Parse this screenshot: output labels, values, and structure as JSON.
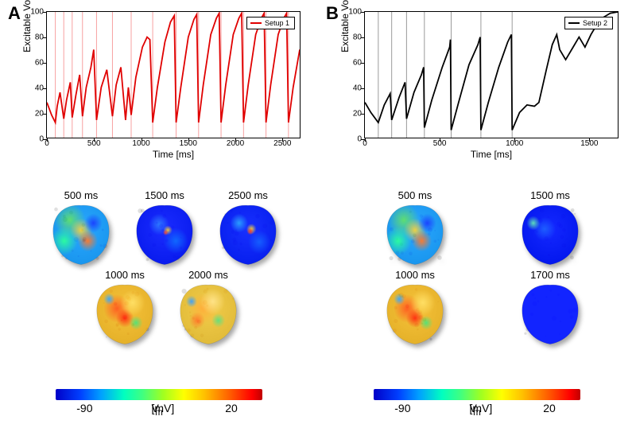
{
  "colors": {
    "setup1_line": "#e00000",
    "setup2_line": "#000000",
    "vline": "#f7a0a0",
    "vline2": "#9a9a9a",
    "axis": "#000000",
    "bg": "#ffffff",
    "shadow": "rgba(0,0,0,0.35)"
  },
  "fontsize": {
    "panel_label": 22,
    "axis_label": 12,
    "tick": 10,
    "thumb_label": 13,
    "legend": 9,
    "cbar_tick": 14
  },
  "panelA": {
    "label": "A",
    "chart": {
      "type": "line",
      "xlim": [
        0,
        2700
      ],
      "ylim": [
        0,
        100
      ],
      "xticks": [
        0,
        500,
        1000,
        1500,
        2000,
        2500
      ],
      "yticks": [
        0,
        20,
        40,
        60,
        80,
        100
      ],
      "xlabel": "Time [ms]",
      "ylabel": "Excitable Volume [%]",
      "legend_label": "Setup 1",
      "line_color": "#e00000",
      "line_width": 1.8,
      "vlines": [
        90,
        180,
        270,
        380,
        530,
        700,
        900,
        1130,
        1380,
        1620,
        1860,
        2100,
        2340,
        2580
      ],
      "vline_color": "#f7a0a0",
      "data": [
        [
          0,
          28
        ],
        [
          50,
          18
        ],
        [
          90,
          12
        ],
        [
          110,
          25
        ],
        [
          140,
          36
        ],
        [
          180,
          15
        ],
        [
          210,
          30
        ],
        [
          250,
          44
        ],
        [
          270,
          16
        ],
        [
          310,
          34
        ],
        [
          350,
          50
        ],
        [
          380,
          17
        ],
        [
          420,
          40
        ],
        [
          470,
          56
        ],
        [
          500,
          70
        ],
        [
          530,
          14
        ],
        [
          580,
          40
        ],
        [
          640,
          54
        ],
        [
          700,
          17
        ],
        [
          740,
          42
        ],
        [
          790,
          56
        ],
        [
          840,
          14
        ],
        [
          870,
          40
        ],
        [
          900,
          18
        ],
        [
          950,
          48
        ],
        [
          1020,
          72
        ],
        [
          1070,
          80
        ],
        [
          1100,
          78
        ],
        [
          1130,
          12
        ],
        [
          1180,
          40
        ],
        [
          1260,
          76
        ],
        [
          1320,
          92
        ],
        [
          1360,
          97
        ],
        [
          1380,
          12
        ],
        [
          1430,
          40
        ],
        [
          1510,
          80
        ],
        [
          1570,
          94
        ],
        [
          1600,
          98
        ],
        [
          1620,
          12
        ],
        [
          1670,
          42
        ],
        [
          1750,
          82
        ],
        [
          1810,
          95
        ],
        [
          1840,
          99
        ],
        [
          1860,
          12
        ],
        [
          1910,
          42
        ],
        [
          1990,
          82
        ],
        [
          2050,
          95
        ],
        [
          2080,
          99
        ],
        [
          2100,
          12
        ],
        [
          2150,
          42
        ],
        [
          2230,
          82
        ],
        [
          2290,
          95
        ],
        [
          2320,
          99
        ],
        [
          2340,
          12
        ],
        [
          2390,
          42
        ],
        [
          2470,
          82
        ],
        [
          2530,
          95
        ],
        [
          2560,
          99
        ],
        [
          2580,
          12
        ],
        [
          2630,
          40
        ],
        [
          2700,
          70
        ]
      ]
    },
    "thumbnails_row1": [
      {
        "label": "500 ms",
        "fill": "mixA1",
        "x": 10
      },
      {
        "label": "1500 ms",
        "fill": "blueA",
        "x": 115
      },
      {
        "label": "2500 ms",
        "fill": "blueB",
        "x": 220
      }
    ],
    "thumbnails_row2": [
      {
        "label": "1000 ms",
        "fill": "warmA",
        "x": 65
      },
      {
        "label": "2000 ms",
        "fill": "warmB",
        "x": 170
      }
    ]
  },
  "panelB": {
    "label": "B",
    "chart": {
      "type": "line",
      "xlim": [
        0,
        1700
      ],
      "ylim": [
        0,
        100
      ],
      "xticks": [
        0,
        500,
        1000,
        1500
      ],
      "yticks": [
        0,
        20,
        40,
        60,
        80,
        100
      ],
      "xlabel": "Time [ms]",
      "ylabel": "Excitable Volume [%]",
      "legend_label": "Setup 2",
      "line_color": "#000000",
      "line_width": 1.8,
      "vlines": [
        90,
        180,
        280,
        400,
        580,
        780,
        990
      ],
      "vline_color": "#9a9a9a",
      "data": [
        [
          0,
          28
        ],
        [
          40,
          20
        ],
        [
          90,
          12
        ],
        [
          130,
          26
        ],
        [
          170,
          35
        ],
        [
          180,
          14
        ],
        [
          230,
          32
        ],
        [
          270,
          44
        ],
        [
          280,
          15
        ],
        [
          330,
          36
        ],
        [
          380,
          50
        ],
        [
          395,
          56
        ],
        [
          400,
          8
        ],
        [
          450,
          30
        ],
        [
          520,
          56
        ],
        [
          570,
          72
        ],
        [
          575,
          78
        ],
        [
          580,
          6
        ],
        [
          630,
          28
        ],
        [
          700,
          58
        ],
        [
          760,
          74
        ],
        [
          775,
          80
        ],
        [
          780,
          6
        ],
        [
          830,
          28
        ],
        [
          900,
          56
        ],
        [
          960,
          76
        ],
        [
          985,
          82
        ],
        [
          990,
          6
        ],
        [
          1040,
          20
        ],
        [
          1090,
          26
        ],
        [
          1140,
          25
        ],
        [
          1170,
          28
        ],
        [
          1220,
          54
        ],
        [
          1260,
          74
        ],
        [
          1290,
          82
        ],
        [
          1310,
          70
        ],
        [
          1350,
          62
        ],
        [
          1400,
          72
        ],
        [
          1440,
          80
        ],
        [
          1480,
          72
        ],
        [
          1520,
          82
        ],
        [
          1580,
          94
        ],
        [
          1650,
          99
        ],
        [
          1700,
          100
        ]
      ]
    },
    "thumbnails_row1": [
      {
        "label": "500 ms",
        "fill": "mixA1",
        "x": 30
      },
      {
        "label": "1500 ms",
        "fill": "blueC",
        "x": 200
      }
    ],
    "thumbnails_row2": [
      {
        "label": "1000 ms",
        "fill": "warmA",
        "x": 30
      },
      {
        "label": "1700 ms",
        "fill": "blueD",
        "x": 200
      }
    ]
  },
  "heart_fills": {
    "mixA1": {
      "type": "patch",
      "base": "#2aa7ff",
      "patches": [
        [
          "#61e06a",
          30,
          25,
          28
        ],
        [
          "#f6d23a",
          50,
          42,
          20
        ],
        [
          "#ff7a2a",
          62,
          60,
          18
        ],
        [
          "#1a3fff",
          72,
          30,
          16
        ],
        [
          "#2cff9c",
          20,
          60,
          24
        ]
      ]
    },
    "blueA": {
      "type": "patch",
      "base": "#1a2cff",
      "patches": [
        [
          "#2e7bff",
          40,
          32,
          18
        ],
        [
          "#f6d23a",
          56,
          42,
          8
        ],
        [
          "#ff4d2a",
          52,
          46,
          5
        ],
        [
          "#106bff",
          70,
          60,
          22
        ]
      ]
    },
    "blueB": {
      "type": "patch",
      "base": "#1830ff",
      "patches": [
        [
          "#2aa2ff",
          34,
          30,
          16
        ],
        [
          "#f6d23a",
          56,
          40,
          9
        ],
        [
          "#ff4020",
          54,
          44,
          6
        ],
        [
          "#1560ff",
          70,
          62,
          20
        ]
      ]
    },
    "blueC": {
      "type": "patch",
      "base": "#1428ff",
      "patches": [
        [
          "#1e60ff",
          40,
          40,
          20
        ],
        [
          "#60e6b8",
          20,
          30,
          12
        ]
      ]
    },
    "blueD": {
      "type": "flat",
      "base": "#1224ff"
    },
    "warmA": {
      "type": "patch",
      "base": "#f6c23a",
      "patches": [
        [
          "#ff5a20",
          36,
          40,
          24
        ],
        [
          "#ff2a10",
          50,
          56,
          16
        ],
        [
          "#ffe066",
          64,
          30,
          22
        ],
        [
          "#3aa7ff",
          22,
          24,
          10
        ],
        [
          "#50e27a",
          70,
          64,
          12
        ]
      ]
    },
    "warmB": {
      "type": "patch",
      "base": "#f2cc4a",
      "patches": [
        [
          "#ffae3a",
          40,
          40,
          26
        ],
        [
          "#ffe48a",
          58,
          28,
          22
        ],
        [
          "#ff7a2a",
          30,
          60,
          14
        ],
        [
          "#60e080",
          68,
          60,
          12
        ],
        [
          "#3aa0ff",
          20,
          28,
          10
        ]
      ]
    }
  },
  "colorbar": {
    "gradient": [
      "#0000c8",
      "#0040ff",
      "#00a0ff",
      "#00ffc0",
      "#40ff80",
      "#a0ff20",
      "#ffff00",
      "#ffc000",
      "#ff6000",
      "#ff0000",
      "#c00000"
    ],
    "min": -90,
    "max": 20,
    "label": "V",
    "label_sub": "m",
    "unit": "[mV]",
    "tick_min_text": "-90",
    "tick_max_text": "20"
  }
}
